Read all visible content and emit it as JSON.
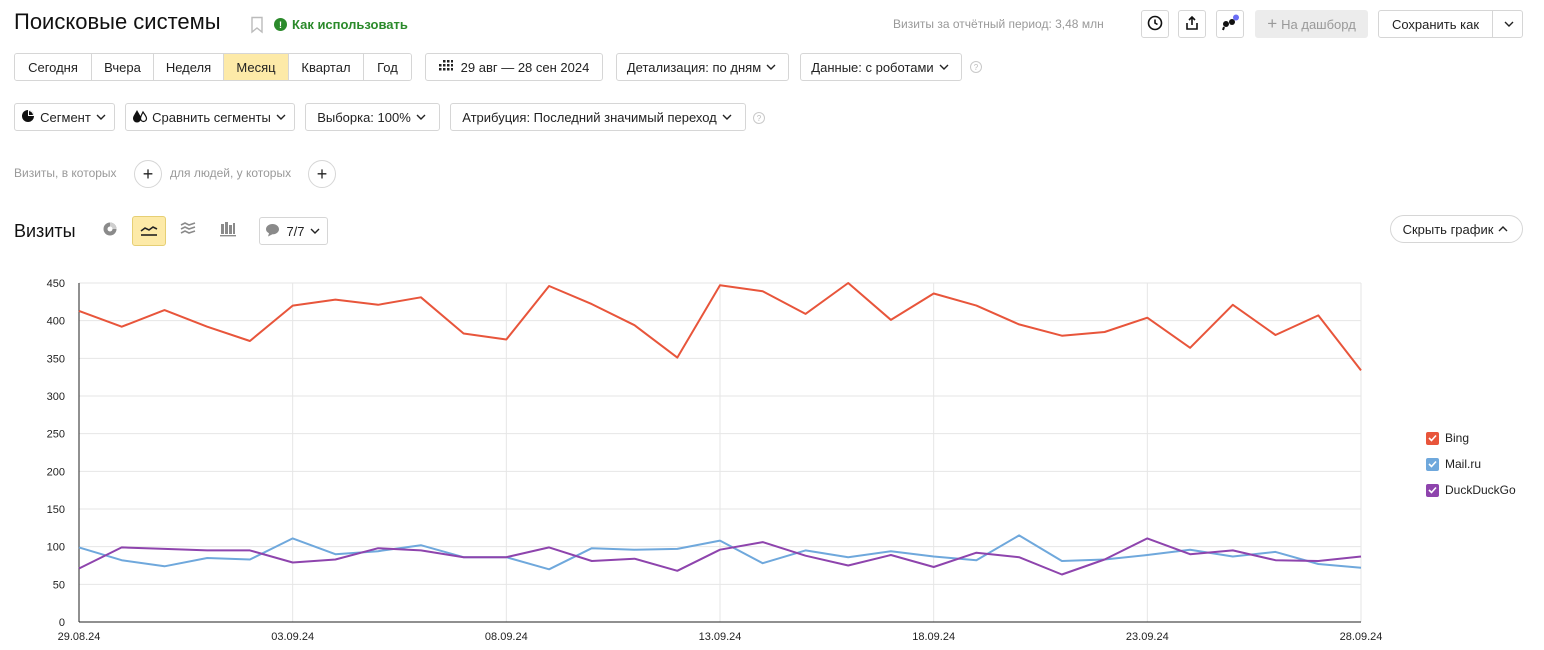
{
  "header": {
    "title": "Поисковые системы",
    "how_to_use": "Как использовать",
    "visits_total": "Визиты за отчётный период: 3,48 млн",
    "to_dashboard": "На дашборд",
    "save_as": "Сохранить как"
  },
  "periods": [
    {
      "label": "Сегодня",
      "active": false
    },
    {
      "label": "Вчера",
      "active": false
    },
    {
      "label": "Неделя",
      "active": false
    },
    {
      "label": "Месяц",
      "active": true
    },
    {
      "label": "Квартал",
      "active": false
    },
    {
      "label": "Год",
      "active": false
    }
  ],
  "filters": {
    "date_range": "29 авг — 28 сен 2024",
    "detail": "Детализация: по дням",
    "data": "Данные: с роботами",
    "segment": "Сегмент",
    "compare_segments": "Сравнить сегменты",
    "sample": "Выборка: 100%",
    "attribution": "Атрибуция: Последний значимый переход"
  },
  "conditions": {
    "visits_where": "Визиты, в которых",
    "people_where": "для людей, у которых"
  },
  "chart_section": {
    "title": "Визиты",
    "series_count": "7/7",
    "hide_chart": "Скрыть график"
  },
  "icons": {
    "history": "clock-icon",
    "export": "share-icon",
    "assistant": "quote-bubble-icon",
    "pie": "pie-chart-icon",
    "line": "line-chart-icon",
    "area": "area-chart-icon",
    "bar": "bar-chart-icon",
    "calendar": "calendar-icon"
  },
  "colors": {
    "bing": "#e8553b",
    "mailru": "#6fa8dc",
    "duckduckgo": "#8e44ad",
    "active_bg": "#fdeaa8",
    "weekend_tick": "#c0392b"
  },
  "chart_data": {
    "type": "line",
    "x": [
      "29.08.24",
      "30.08.24",
      "31.08.24",
      "01.09.24",
      "02.09.24",
      "03.09.24",
      "04.09.24",
      "05.09.24",
      "06.09.24",
      "07.09.24",
      "08.09.24",
      "09.09.24",
      "10.09.24",
      "11.09.24",
      "12.09.24",
      "13.09.24",
      "14.09.24",
      "15.09.24",
      "16.09.24",
      "17.09.24",
      "18.09.24",
      "19.09.24",
      "20.09.24",
      "21.09.24",
      "22.09.24",
      "23.09.24",
      "24.09.24",
      "25.09.24",
      "26.09.24",
      "27.09.24",
      "28.09.24"
    ],
    "x_tick_labels": [
      {
        "label": "29.08.24",
        "index": 0,
        "weekend": false
      },
      {
        "label": "03.09.24",
        "index": 5,
        "weekend": false
      },
      {
        "label": "08.09.24",
        "index": 10,
        "weekend": true
      },
      {
        "label": "13.09.24",
        "index": 15,
        "weekend": false
      },
      {
        "label": "18.09.24",
        "index": 20,
        "weekend": false
      },
      {
        "label": "23.09.24",
        "index": 25,
        "weekend": false
      },
      {
        "label": "28.09.24",
        "index": 30,
        "weekend": true
      }
    ],
    "y_ticks": [
      0,
      50,
      100,
      150,
      200,
      250,
      300,
      350,
      400,
      450
    ],
    "ylim": [
      0,
      450
    ],
    "grid": true,
    "legend_position": "right",
    "series": [
      {
        "name": "Bing",
        "color": "#e8553b",
        "values": [
          413,
          392,
          414,
          392,
          373,
          420,
          428,
          421,
          431,
          383,
          375,
          446,
          422,
          394,
          351,
          447,
          439,
          409,
          450,
          401,
          436,
          420,
          395,
          380,
          385,
          404,
          364,
          421,
          381,
          407,
          334
        ]
      },
      {
        "name": "Mail.ru",
        "color": "#6fa8dc",
        "values": [
          99,
          82,
          74,
          85,
          83,
          111,
          90,
          94,
          102,
          86,
          86,
          70,
          98,
          96,
          97,
          108,
          78,
          95,
          86,
          94,
          87,
          82,
          115,
          81,
          83,
          89,
          96,
          87,
          93,
          77,
          72
        ]
      },
      {
        "name": "DuckDuckGo",
        "color": "#8e44ad",
        "values": [
          71,
          99,
          97,
          95,
          95,
          79,
          83,
          98,
          95,
          86,
          86,
          99,
          81,
          84,
          68,
          96,
          106,
          88,
          75,
          89,
          73,
          92,
          86,
          63,
          83,
          111,
          90,
          95,
          82,
          81,
          87
        ]
      }
    ]
  }
}
